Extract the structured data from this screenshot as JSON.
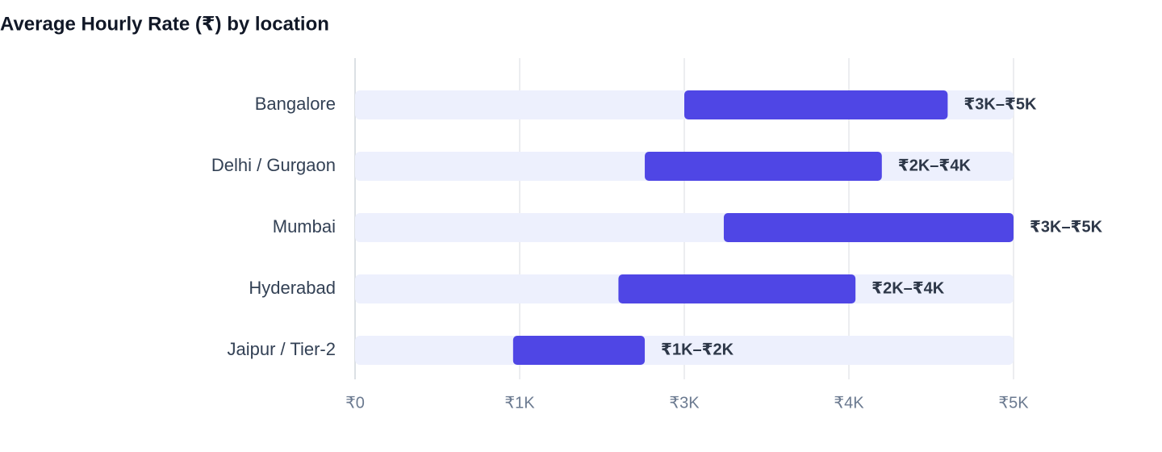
{
  "chart_data": {
    "type": "range-bar",
    "title": "Average Hourly Rate (₹) by location",
    "categories": [
      "Bangalore",
      "Delhi / Gurgaon",
      "Mumbai",
      "Hyderabad",
      "Jaipur / Tier-2"
    ],
    "low": [
      2500,
      2200,
      2800,
      2000,
      1200
    ],
    "high": [
      4500,
      4000,
      5000,
      3800,
      2200
    ],
    "value_labels": [
      "₹3K–₹5K",
      "₹2K–₹4K",
      "₹3K–₹5K",
      "₹2K–₹4K",
      "₹1K–₹2K"
    ],
    "color": "#4f46e5",
    "track_color": "#edf0fd",
    "xlim": [
      0,
      5000
    ],
    "xticks": [
      {
        "value": 0,
        "label": "₹0"
      },
      {
        "value": 1250,
        "label": "₹1K"
      },
      {
        "value": 2500,
        "label": "₹3K"
      },
      {
        "value": 3750,
        "label": "₹4K"
      },
      {
        "value": 5000,
        "label": "₹5K"
      }
    ],
    "grid": true
  }
}
